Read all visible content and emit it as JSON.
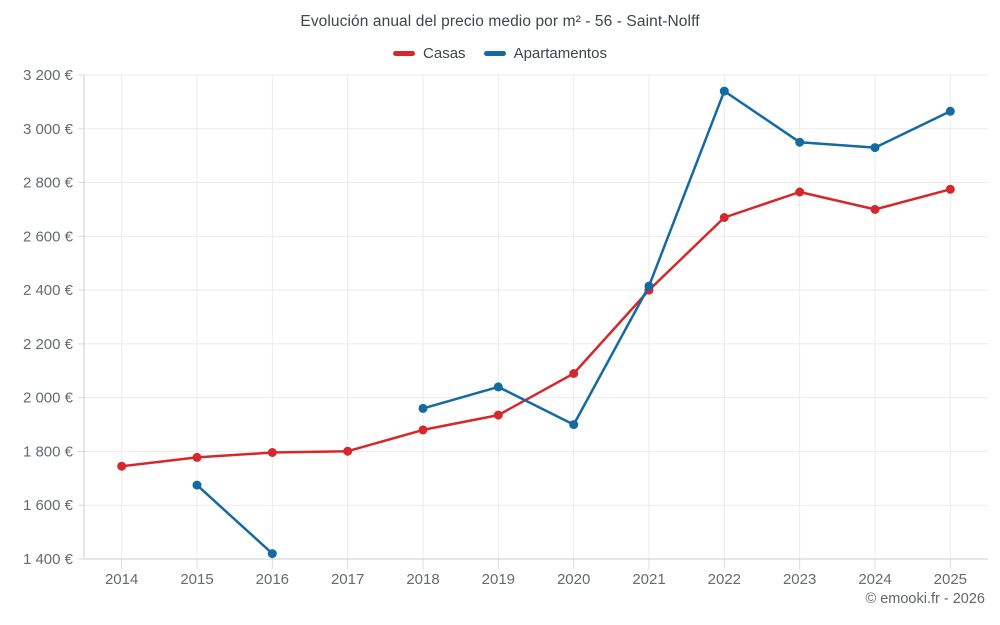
{
  "chart_data": {
    "type": "line",
    "title": "Evolución anual del precio medio por m² - 56 - Saint-Nolff",
    "categories": [
      "2014",
      "2015",
      "2016",
      "2017",
      "2018",
      "2019",
      "2020",
      "2021",
      "2022",
      "2023",
      "2024",
      "2025"
    ],
    "series": [
      {
        "name": "Casas",
        "color": "#d5282c",
        "values": [
          1745,
          1778,
          1796,
          1801,
          1880,
          1935,
          2090,
          2400,
          2670,
          2765,
          2700,
          2775
        ]
      },
      {
        "name": "Apartamentos",
        "color": "#156aa0",
        "values": [
          null,
          1675,
          1420,
          null,
          1960,
          2040,
          1900,
          2415,
          3140,
          2950,
          2930,
          3065
        ]
      }
    ],
    "ylim": [
      1400,
      3200
    ],
    "y_tick_step": 200,
    "y_tick_labels": [
      "1 400 €",
      "1 600 €",
      "1 800 €",
      "2 000 €",
      "2 200 €",
      "2 400 €",
      "2 600 €",
      "2 800 €",
      "3 000 €",
      "3 200 €"
    ],
    "grid": true,
    "legend_position": "top",
    "marker": "circle"
  },
  "footer": {
    "attribution": "© emooki.fr - 2026"
  },
  "style": {
    "grid_color": "#ebebeb",
    "axis_color": "#c9cdd1",
    "tick_color": "#d9dcdf",
    "label_color": "#666b70"
  }
}
